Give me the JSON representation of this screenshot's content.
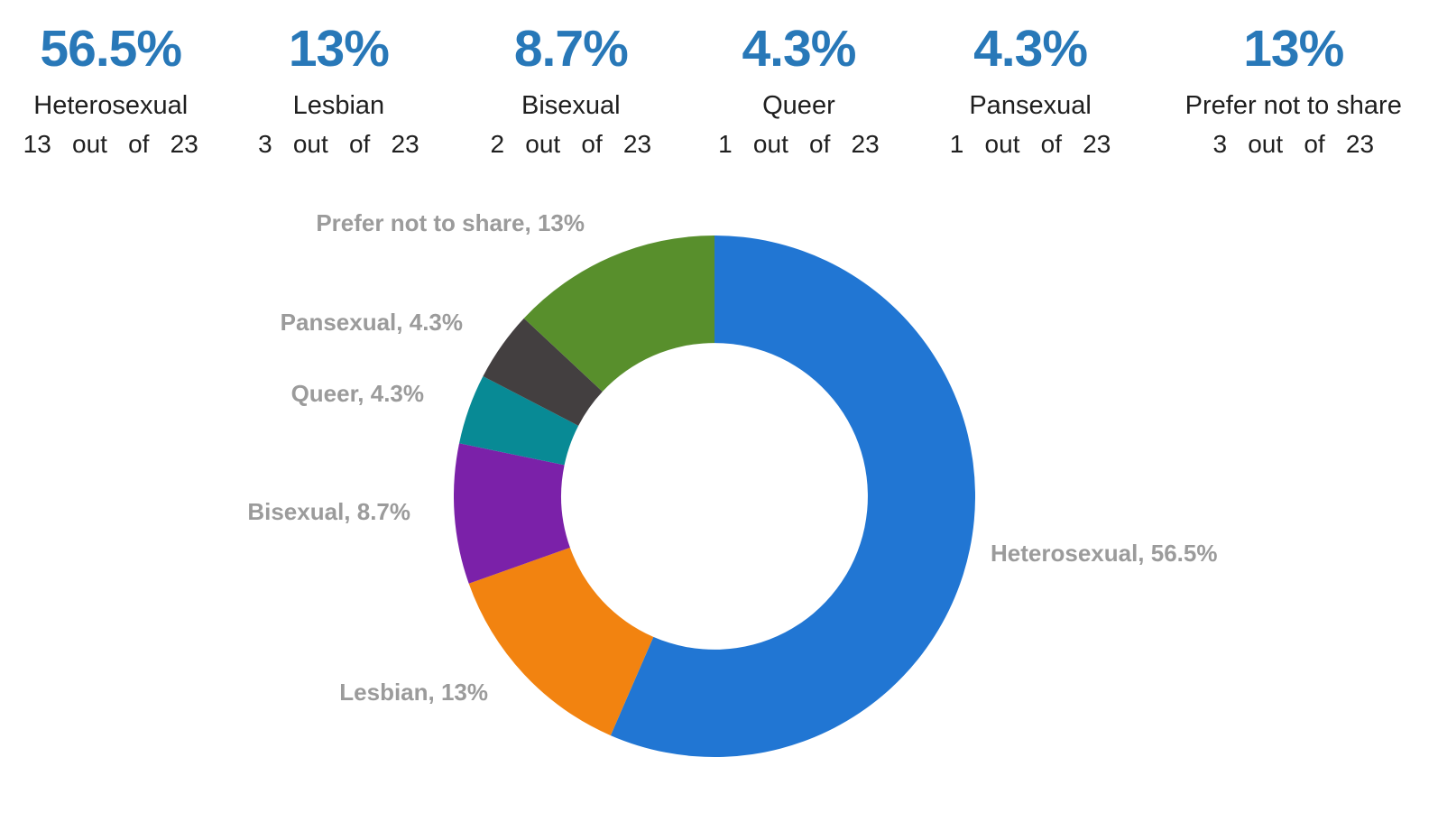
{
  "stats": [
    {
      "percent": "56.5%",
      "label": "Heterosexual",
      "count": "13 out of 23"
    },
    {
      "percent": "13%",
      "label": "Lesbian",
      "count": "3 out of 23"
    },
    {
      "percent": "8.7%",
      "label": "Bisexual",
      "count": "2 out of 23"
    },
    {
      "percent": "4.3%",
      "label": "Queer",
      "count": "1 out of 23"
    },
    {
      "percent": "4.3%",
      "label": "Pansexual",
      "count": "1 out of 23"
    },
    {
      "percent": "13%",
      "label": "Prefer not to share",
      "count": "3 out of 23"
    }
  ],
  "chart_data": {
    "type": "pie",
    "subtype": "donut",
    "total": 23,
    "start_angle_deg": 0,
    "direction": "clockwise",
    "inner_radius_ratio": 0.588,
    "legend_position": "outside-labels",
    "segments": [
      {
        "label": "Heterosexual",
        "value": 13,
        "percent_label": "56.5%",
        "color": "#2176d3",
        "callout": "Heterosexual, 56.5%"
      },
      {
        "label": "Lesbian",
        "value": 3,
        "percent_label": "13%",
        "color": "#f28310",
        "callout": "Lesbian, 13%"
      },
      {
        "label": "Bisexual",
        "value": 2,
        "percent_label": "8.7%",
        "color": "#7b21a9",
        "callout": "Bisexual, 8.7%"
      },
      {
        "label": "Queer",
        "value": 1,
        "percent_label": "4.3%",
        "color": "#088a95",
        "callout": "Queer, 4.3%"
      },
      {
        "label": "Pansexual",
        "value": 1,
        "percent_label": "4.3%",
        "color": "#433f40",
        "callout": "Pansexual, 4.3%"
      },
      {
        "label": "Prefer not to share",
        "value": 3,
        "percent_label": "13%",
        "color": "#588f2c",
        "callout": "Prefer not to share, 13%"
      }
    ],
    "colors": {
      "stat_percent_text": "#2878b8",
      "callout_text": "#9b9b9b",
      "body_text": "#1f1f1f",
      "background": "#ffffff"
    }
  }
}
